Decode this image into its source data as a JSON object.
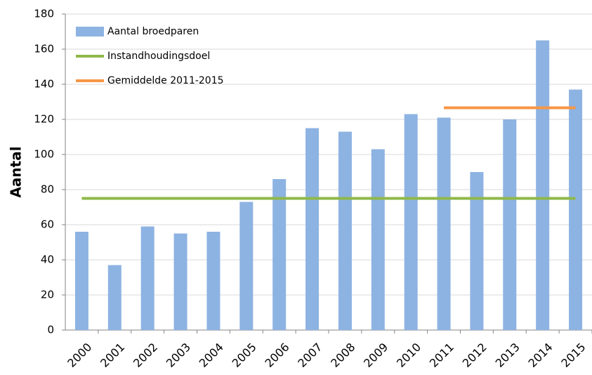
{
  "chart_data": {
    "type": "bar",
    "y_label": "Aantal",
    "categories": [
      "2000",
      "2001",
      "2002",
      "2003",
      "2004",
      "2005",
      "2006",
      "2007",
      "2008",
      "2009",
      "2010",
      "2011",
      "2012",
      "2013",
      "2014",
      "2015"
    ],
    "series": [
      {
        "name": "Aantal broedparen",
        "type": "bar",
        "color": "#8db3e2",
        "values": [
          56,
          37,
          59,
          55,
          56,
          73,
          86,
          115,
          113,
          103,
          123,
          121,
          90,
          120,
          165,
          137
        ]
      },
      {
        "name": "Instandhoudingsdoel",
        "type": "line",
        "color": "#8fb84a",
        "values": [
          75,
          75,
          75,
          75,
          75,
          75,
          75,
          75,
          75,
          75,
          75,
          75,
          75,
          75,
          75,
          75
        ]
      },
      {
        "name": "Gemiddelde 2011-2015",
        "type": "line",
        "color": "#f79646",
        "values": [
          null,
          null,
          null,
          null,
          null,
          null,
          null,
          null,
          null,
          null,
          null,
          126.6,
          126.6,
          126.6,
          126.6,
          126.6
        ]
      }
    ],
    "ylim": [
      0,
      180
    ],
    "yticks": [
      0,
      20,
      40,
      60,
      80,
      100,
      120,
      140,
      160,
      180
    ],
    "grid": true
  }
}
